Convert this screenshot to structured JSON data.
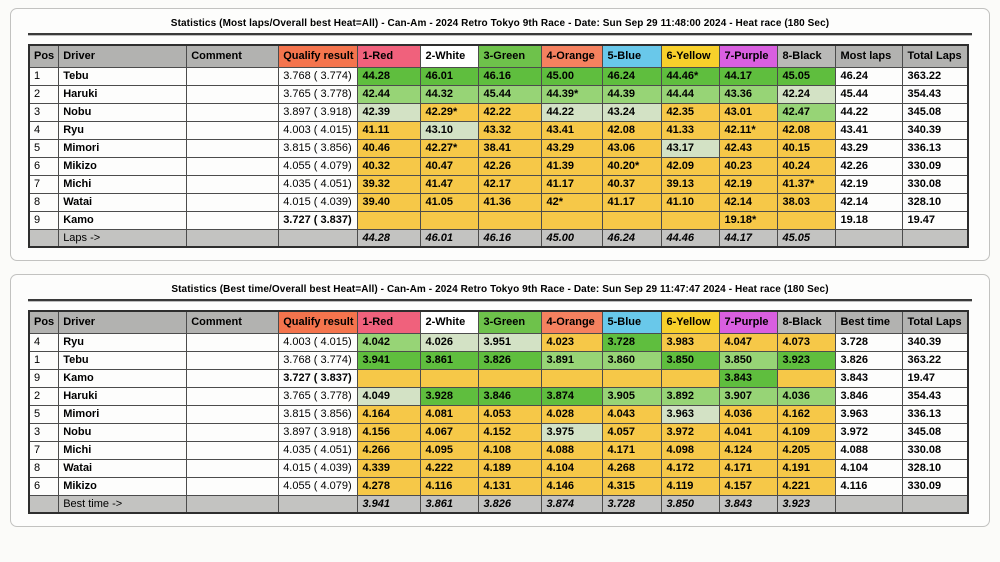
{
  "colors": {
    "header_gray": "#b2b2b0",
    "footer_gray": "#c3c3c1",
    "qualify_header": "#f4744d",
    "heat_headers": [
      "#f0617c",
      "#ffffff",
      "#6ec24b",
      "#f5815f",
      "#69c8ea",
      "#f8d02b",
      "#d95fe0",
      "#b9b9b7"
    ],
    "cell_green": "#5fbe3e",
    "cell_light_green": "#97d476",
    "cell_pale_green": "#d3e2c5",
    "cell_yellow": "#f6c848",
    "white": "#ffffff"
  },
  "tables": [
    {
      "title": "Statistics (Most laps/Overall best Heat=All) - Can-Am - 2024 Retro Tokyo 9th Race - Date: Sun Sep 29 11:48:00 2024 - Heat race (180 Sec)",
      "columns": [
        "Pos",
        "Driver",
        "Comment",
        "Qualify result",
        "1-Red",
        "2-White",
        "3-Green",
        "4-Orange",
        "5-Blue",
        "6-Yellow",
        "7-Purple",
        "8-Black",
        "Most laps",
        "Total Laps"
      ],
      "rows": [
        {
          "pos": "1",
          "driver": "Tebu",
          "comment": "",
          "qualify": "3.768 ( 3.774)",
          "qbold": false,
          "heats": [
            [
              "44.28",
              "g"
            ],
            [
              "46.01",
              "g"
            ],
            [
              "46.16",
              "g"
            ],
            [
              "45.00",
              "g"
            ],
            [
              "46.24",
              "g"
            ],
            [
              "44.46*",
              "g"
            ],
            [
              "44.17",
              "g"
            ],
            [
              "45.05",
              "g"
            ]
          ],
          "summary": "46.24",
          "total": "363.22"
        },
        {
          "pos": "2",
          "driver": "Haruki",
          "comment": "",
          "qualify": "3.765 ( 3.778)",
          "qbold": false,
          "heats": [
            [
              "42.44",
              "lg"
            ],
            [
              "44.32",
              "lg"
            ],
            [
              "45.44",
              "lg"
            ],
            [
              "44.39*",
              "lg"
            ],
            [
              "44.39",
              "lg"
            ],
            [
              "44.44",
              "lg"
            ],
            [
              "43.36",
              "lg"
            ],
            [
              "42.24",
              "pg"
            ]
          ],
          "summary": "45.44",
          "total": "354.43"
        },
        {
          "pos": "3",
          "driver": "Nobu",
          "comment": "",
          "qualify": "3.897 ( 3.918)",
          "qbold": false,
          "heats": [
            [
              "42.39",
              "pg"
            ],
            [
              "42.29*",
              "y"
            ],
            [
              "42.22",
              "y"
            ],
            [
              "44.22",
              "pg"
            ],
            [
              "43.24",
              "pg"
            ],
            [
              "42.35",
              "y"
            ],
            [
              "43.01",
              "y"
            ],
            [
              "42.47",
              "lg"
            ]
          ],
          "summary": "44.22",
          "total": "345.08"
        },
        {
          "pos": "4",
          "driver": "Ryu",
          "comment": "",
          "qualify": "4.003 ( 4.015)",
          "qbold": false,
          "heats": [
            [
              "41.11",
              "y"
            ],
            [
              "43.10",
              "pg"
            ],
            [
              "43.32",
              "y"
            ],
            [
              "43.41",
              "y"
            ],
            [
              "42.08",
              "y"
            ],
            [
              "41.33",
              "y"
            ],
            [
              "42.11*",
              "y"
            ],
            [
              "42.08",
              "y"
            ]
          ],
          "summary": "43.41",
          "total": "340.39"
        },
        {
          "pos": "5",
          "driver": "Mimori",
          "comment": "",
          "qualify": "3.815 ( 3.856)",
          "qbold": false,
          "heats": [
            [
              "40.46",
              "y"
            ],
            [
              "42.27*",
              "y"
            ],
            [
              "38.41",
              "y"
            ],
            [
              "43.29",
              "y"
            ],
            [
              "43.06",
              "y"
            ],
            [
              "43.17",
              "pg"
            ],
            [
              "42.43",
              "y"
            ],
            [
              "40.15",
              "y"
            ]
          ],
          "summary": "43.29",
          "total": "336.13"
        },
        {
          "pos": "6",
          "driver": "Mikizo",
          "comment": "",
          "qualify": "4.055 ( 4.079)",
          "qbold": false,
          "heats": [
            [
              "40.32",
              "y"
            ],
            [
              "40.47",
              "y"
            ],
            [
              "42.26",
              "y"
            ],
            [
              "41.39",
              "y"
            ],
            [
              "40.20*",
              "y"
            ],
            [
              "42.09",
              "y"
            ],
            [
              "40.23",
              "y"
            ],
            [
              "40.24",
              "y"
            ]
          ],
          "summary": "42.26",
          "total": "330.09"
        },
        {
          "pos": "7",
          "driver": "Michi",
          "comment": "",
          "qualify": "4.035 ( 4.051)",
          "qbold": false,
          "heats": [
            [
              "39.32",
              "y"
            ],
            [
              "41.47",
              "y"
            ],
            [
              "42.17",
              "y"
            ],
            [
              "41.17",
              "y"
            ],
            [
              "40.37",
              "y"
            ],
            [
              "39.13",
              "y"
            ],
            [
              "42.19",
              "y"
            ],
            [
              "41.37*",
              "y"
            ]
          ],
          "summary": "42.19",
          "total": "330.08"
        },
        {
          "pos": "8",
          "driver": "Watai",
          "comment": "",
          "qualify": "4.015 ( 4.039)",
          "qbold": false,
          "heats": [
            [
              "39.40",
              "y"
            ],
            [
              "41.05",
              "y"
            ],
            [
              "41.36",
              "y"
            ],
            [
              "42*",
              "y"
            ],
            [
              "41.17",
              "y"
            ],
            [
              "41.10",
              "y"
            ],
            [
              "42.14",
              "y"
            ],
            [
              "38.03",
              "y"
            ]
          ],
          "summary": "42.14",
          "total": "328.10"
        },
        {
          "pos": "9",
          "driver": "Kamo",
          "comment": "",
          "qualify": "3.727 ( 3.837)",
          "qbold": true,
          "heats": [
            [
              "",
              "y"
            ],
            [
              "",
              "y"
            ],
            [
              "",
              "y"
            ],
            [
              "",
              "y"
            ],
            [
              "",
              "y"
            ],
            [
              "",
              "y"
            ],
            [
              "19.18*",
              "y"
            ],
            [
              "",
              "y"
            ]
          ],
          "summary": "19.18",
          "total": "19.47"
        }
      ],
      "footer_label": "Laps ->",
      "footer_vals": [
        "44.28",
        "46.01",
        "46.16",
        "45.00",
        "46.24",
        "44.46",
        "44.17",
        "45.05"
      ]
    },
    {
      "title": "Statistics (Best time/Overall best Heat=All) - Can-Am - 2024 Retro Tokyo 9th Race - Date: Sun Sep 29 11:47:47 2024 - Heat race (180 Sec)",
      "columns": [
        "Pos",
        "Driver",
        "Comment",
        "Qualify result",
        "1-Red",
        "2-White",
        "3-Green",
        "4-Orange",
        "5-Blue",
        "6-Yellow",
        "7-Purple",
        "8-Black",
        "Best time",
        "Total Laps"
      ],
      "rows": [
        {
          "pos": "4",
          "driver": "Ryu",
          "comment": "",
          "qualify": "4.003 ( 4.015)",
          "qbold": false,
          "heats": [
            [
              "4.042",
              "lg"
            ],
            [
              "4.026",
              "pg"
            ],
            [
              "3.951",
              "pg"
            ],
            [
              "4.023",
              "y"
            ],
            [
              "3.728",
              "g"
            ],
            [
              "3.983",
              "y"
            ],
            [
              "4.047",
              "y"
            ],
            [
              "4.073",
              "y"
            ]
          ],
          "summary": "3.728",
          "total": "340.39"
        },
        {
          "pos": "1",
          "driver": "Tebu",
          "comment": "",
          "qualify": "3.768 ( 3.774)",
          "qbold": false,
          "heats": [
            [
              "3.941",
              "g"
            ],
            [
              "3.861",
              "g"
            ],
            [
              "3.826",
              "g"
            ],
            [
              "3.891",
              "lg"
            ],
            [
              "3.860",
              "lg"
            ],
            [
              "3.850",
              "g"
            ],
            [
              "3.850",
              "lg"
            ],
            [
              "3.923",
              "g"
            ]
          ],
          "summary": "3.826",
          "total": "363.22"
        },
        {
          "pos": "9",
          "driver": "Kamo",
          "comment": "",
          "qualify": "3.727 ( 3.837)",
          "qbold": true,
          "heats": [
            [
              "",
              "y"
            ],
            [
              "",
              "y"
            ],
            [
              "",
              "y"
            ],
            [
              "",
              "y"
            ],
            [
              "",
              "y"
            ],
            [
              "",
              "y"
            ],
            [
              "3.843",
              "g"
            ],
            [
              "",
              "y"
            ]
          ],
          "summary": "3.843",
          "total": "19.47"
        },
        {
          "pos": "2",
          "driver": "Haruki",
          "comment": "",
          "qualify": "3.765 ( 3.778)",
          "qbold": false,
          "heats": [
            [
              "4.049",
              "pg"
            ],
            [
              "3.928",
              "g"
            ],
            [
              "3.846",
              "g"
            ],
            [
              "3.874",
              "g"
            ],
            [
              "3.905",
              "lg"
            ],
            [
              "3.892",
              "lg"
            ],
            [
              "3.907",
              "lg"
            ],
            [
              "4.036",
              "lg"
            ]
          ],
          "summary": "3.846",
          "total": "354.43"
        },
        {
          "pos": "5",
          "driver": "Mimori",
          "comment": "",
          "qualify": "3.815 ( 3.856)",
          "qbold": false,
          "heats": [
            [
              "4.164",
              "y"
            ],
            [
              "4.081",
              "y"
            ],
            [
              "4.053",
              "y"
            ],
            [
              "4.028",
              "y"
            ],
            [
              "4.043",
              "y"
            ],
            [
              "3.963",
              "pg"
            ],
            [
              "4.036",
              "y"
            ],
            [
              "4.162",
              "y"
            ]
          ],
          "summary": "3.963",
          "total": "336.13"
        },
        {
          "pos": "3",
          "driver": "Nobu",
          "comment": "",
          "qualify": "3.897 ( 3.918)",
          "qbold": false,
          "heats": [
            [
              "4.156",
              "y"
            ],
            [
              "4.067",
              "y"
            ],
            [
              "4.152",
              "y"
            ],
            [
              "3.975",
              "pg"
            ],
            [
              "4.057",
              "y"
            ],
            [
              "3.972",
              "y"
            ],
            [
              "4.041",
              "y"
            ],
            [
              "4.109",
              "y"
            ]
          ],
          "summary": "3.972",
          "total": "345.08"
        },
        {
          "pos": "7",
          "driver": "Michi",
          "comment": "",
          "qualify": "4.035 ( 4.051)",
          "qbold": false,
          "heats": [
            [
              "4.266",
              "y"
            ],
            [
              "4.095",
              "y"
            ],
            [
              "4.108",
              "y"
            ],
            [
              "4.088",
              "y"
            ],
            [
              "4.171",
              "y"
            ],
            [
              "4.098",
              "y"
            ],
            [
              "4.124",
              "y"
            ],
            [
              "4.205",
              "y"
            ]
          ],
          "summary": "4.088",
          "total": "330.08"
        },
        {
          "pos": "8",
          "driver": "Watai",
          "comment": "",
          "qualify": "4.015 ( 4.039)",
          "qbold": false,
          "heats": [
            [
              "4.339",
              "y"
            ],
            [
              "4.222",
              "y"
            ],
            [
              "4.189",
              "y"
            ],
            [
              "4.104",
              "y"
            ],
            [
              "4.268",
              "y"
            ],
            [
              "4.172",
              "y"
            ],
            [
              "4.171",
              "y"
            ],
            [
              "4.191",
              "y"
            ]
          ],
          "summary": "4.104",
          "total": "328.10"
        },
        {
          "pos": "6",
          "driver": "Mikizo",
          "comment": "",
          "qualify": "4.055 ( 4.079)",
          "qbold": false,
          "heats": [
            [
              "4.278",
              "y"
            ],
            [
              "4.116",
              "y"
            ],
            [
              "4.131",
              "y"
            ],
            [
              "4.146",
              "y"
            ],
            [
              "4.315",
              "y"
            ],
            [
              "4.119",
              "y"
            ],
            [
              "4.157",
              "y"
            ],
            [
              "4.221",
              "y"
            ]
          ],
          "summary": "4.116",
          "total": "330.09"
        }
      ],
      "footer_label": "Best time ->",
      "footer_vals": [
        "3.941",
        "3.861",
        "3.826",
        "3.874",
        "3.728",
        "3.850",
        "3.843",
        "3.923"
      ]
    }
  ]
}
